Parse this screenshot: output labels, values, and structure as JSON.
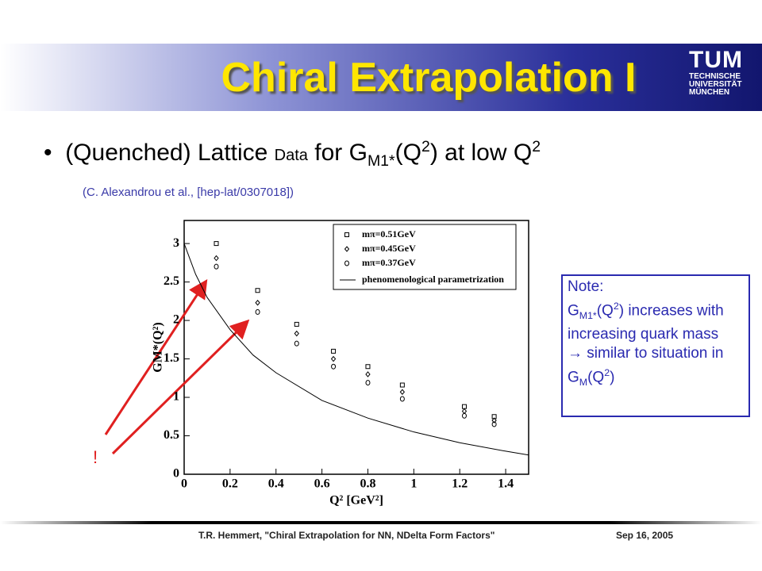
{
  "header": {
    "title": "Chiral Extrapolation I",
    "logo": [
      "TUM",
      "TECHNISCHE",
      "UNIVERSITÄT",
      "MÜNCHEN"
    ]
  },
  "bullet": [
    "(Quenched) Lattice ",
    "Data",
    " for G",
    "M1*",
    "(Q",
    "2",
    ") at low Q",
    "2"
  ],
  "citation": "(C. Alexandrou et al., [hep-lat/0307018])",
  "note": [
    "Note:",
    "G",
    "M1*",
    "(Q",
    "2",
    ") increases with increasing quark mass",
    "→ similar to situation in G",
    "M",
    "(Q",
    "2",
    ")"
  ],
  "footer": {
    "left": "T.R. Hemmert, \"Chiral Extrapolation for NN, NDelta Form Factors\"",
    "right": "Sep 16, 2005"
  },
  "chart_data": {
    "type": "scatter",
    "x_label": "Q² [GeV²]",
    "y_label": "GM*(Q²)",
    "x": [
      0.14,
      0.32,
      0.49,
      0.65,
      0.8,
      0.95,
      1.22,
      1.35
    ],
    "series": [
      {
        "name": "mπ=0.51GeV",
        "color": "#000000",
        "marker": "square",
        "values": [
          3.0,
          2.39,
          1.95,
          1.6,
          1.4,
          1.16,
          0.88,
          0.75
        ]
      },
      {
        "name": "mπ=0.45GeV",
        "color": "#000000",
        "marker": "diamond",
        "values": [
          2.81,
          2.23,
          1.83,
          1.5,
          1.3,
          1.07,
          0.82,
          0.7
        ]
      },
      {
        "name": "mπ=0.37GeV",
        "color": "#000000",
        "marker": "circle",
        "values": [
          2.7,
          2.11,
          1.7,
          1.4,
          1.19,
          0.98,
          0.76,
          0.65
        ]
      },
      {
        "name": "phenomenological parametrization",
        "color": "#000000",
        "marker": "line",
        "x": [
          0,
          0.05,
          0.1,
          0.2,
          0.3,
          0.4,
          0.6,
          0.8,
          1.0,
          1.2,
          1.4,
          1.5
        ],
        "values": [
          3.0,
          2.6,
          2.3,
          1.88,
          1.55,
          1.32,
          0.96,
          0.73,
          0.55,
          0.41,
          0.3,
          0.25
        ]
      }
    ],
    "xlim": [
      0,
      1.5
    ],
    "ylim": [
      0,
      3.3
    ],
    "xticks": [
      0,
      0.2,
      0.4,
      0.6,
      0.8,
      1,
      1.2,
      1.4
    ],
    "yticks": [
      0,
      0.5,
      1,
      1.5,
      2,
      2.5,
      3
    ],
    "legend": "upper right",
    "annotation": "!"
  }
}
